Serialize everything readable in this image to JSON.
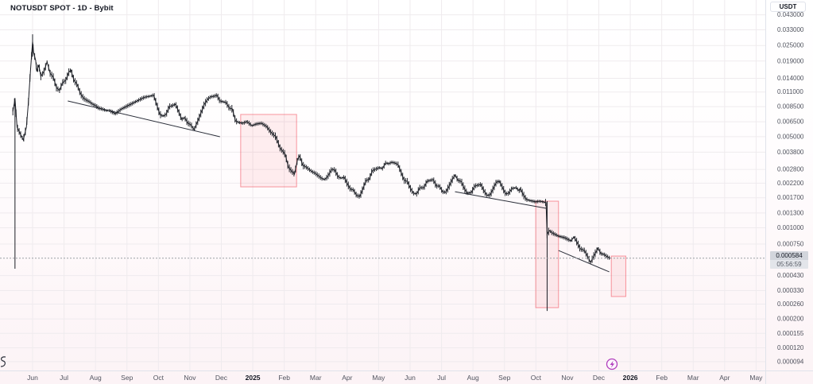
{
  "header": {
    "title": "NOTUSDT SPOT - 1D - Bybit"
  },
  "price_axis": {
    "currency_button": "USDT",
    "ticks": [
      "0.043000",
      "0.033000",
      "0.025000",
      "0.019000",
      "0.014000",
      "0.011000",
      "0.008500",
      "0.006500",
      "0.005000",
      "0.003800",
      "0.002800",
      "0.002200",
      "0.001700",
      "0.001300",
      "0.001000",
      "0.000750",
      "0.000430",
      "0.000330",
      "0.000260",
      "0.000200",
      "0.000155",
      "0.000120",
      "0.000094"
    ],
    "last_price_label": "0.000584",
    "countdown": "05:56:59"
  },
  "time_axis": {
    "labels": [
      {
        "text": "Jun",
        "bold": false
      },
      {
        "text": "Jul",
        "bold": false
      },
      {
        "text": "Aug",
        "bold": false
      },
      {
        "text": "Sep",
        "bold": false
      },
      {
        "text": "Oct",
        "bold": false
      },
      {
        "text": "Nov",
        "bold": false
      },
      {
        "text": "Dec",
        "bold": false
      },
      {
        "text": "2025",
        "bold": true
      },
      {
        "text": "Feb",
        "bold": false
      },
      {
        "text": "Mar",
        "bold": false
      },
      {
        "text": "Apr",
        "bold": false
      },
      {
        "text": "May",
        "bold": false
      },
      {
        "text": "Jun",
        "bold": false
      },
      {
        "text": "Jul",
        "bold": false
      },
      {
        "text": "Aug",
        "bold": false
      },
      {
        "text": "Sep",
        "bold": false
      },
      {
        "text": "Oct",
        "bold": false
      },
      {
        "text": "Nov",
        "bold": false
      },
      {
        "text": "Dec",
        "bold": false
      },
      {
        "text": "2026",
        "bold": true
      },
      {
        "text": "Feb",
        "bold": false
      },
      {
        "text": "Mar",
        "bold": false
      },
      {
        "text": "Apr",
        "bold": false
      },
      {
        "text": "May",
        "bold": false
      }
    ],
    "start_month": "2024-06"
  },
  "colors": {
    "candle": "#1a1d24",
    "trendline": "#2a2e39",
    "box_border": "rgba(242,54,69,0.5)",
    "box_fill": "rgba(242,54,69,0.08)",
    "grid": "#efebee",
    "axis_text": "#50535e",
    "year_text": "#131722",
    "axis_line": "#e0e3eb",
    "price_line": "#9aa0a6",
    "event_icon": "#b13fbd",
    "label_bg": "#d2d5dc",
    "countdown_bg": "#e3e5ea"
  },
  "chart_data": {
    "type": "candlestick",
    "symbol": "NOTUSDT",
    "market": "SPOT",
    "interval": "1D",
    "exchange": "Bybit",
    "quote": "USDT",
    "y_scale": "log",
    "ylim": [
      9.4e-05,
      0.043
    ],
    "x_unit": "days since 2024-05-15",
    "x_range_visible": [
      "2024-05-13",
      "2026-05-31"
    ],
    "last_price": 0.000584,
    "series": [
      {
        "name": "NOTUSDT close",
        "points": [
          [
            -2,
            0.0078
          ],
          [
            0,
            0.0097
          ],
          [
            2,
            0.0059
          ],
          [
            5,
            0.00528
          ],
          [
            8,
            0.00472
          ],
          [
            11,
            0.0059
          ],
          [
            13,
            0.00926
          ],
          [
            15,
            0.0162
          ],
          [
            17,
            0.0269
          ],
          [
            18,
            0.0221
          ],
          [
            20,
            0.0192
          ],
          [
            21,
            0.0158
          ],
          [
            23,
            0.0177
          ],
          [
            25,
            0.0145
          ],
          [
            28,
            0.0158
          ],
          [
            31,
            0.0187
          ],
          [
            34,
            0.0153
          ],
          [
            37,
            0.0143
          ],
          [
            40,
            0.0119
          ],
          [
            43,
            0.0113
          ],
          [
            46,
            0.013
          ],
          [
            49,
            0.0135
          ],
          [
            52,
            0.0156
          ],
          [
            54,
            0.0162
          ],
          [
            57,
            0.0135
          ],
          [
            60,
            0.0126
          ],
          [
            63,
            0.0108
          ],
          [
            66,
            0.0099
          ],
          [
            69,
            0.00952
          ],
          [
            72,
            0.00926
          ],
          [
            75,
            0.00888
          ],
          [
            78,
            0.00863
          ],
          [
            81,
            0.00827
          ],
          [
            84,
            0.00816
          ],
          [
            88,
            0.00793
          ],
          [
            91,
            0.00793
          ],
          [
            94,
            0.00771
          ],
          [
            97,
            0.0075
          ],
          [
            100,
            0.00782
          ],
          [
            103,
            0.00816
          ],
          [
            106,
            0.00839
          ],
          [
            109,
            0.00863
          ],
          [
            112,
            0.00888
          ],
          [
            115,
            0.00913
          ],
          [
            118,
            0.00939
          ],
          [
            121,
            0.00966
          ],
          [
            124,
            0.00993
          ],
          [
            127,
            0.0101
          ],
          [
            130,
            0.0102
          ],
          [
            134,
            0.0104
          ],
          [
            137,
            0.00875
          ],
          [
            140,
            0.0074
          ],
          [
            143,
            0.00719
          ],
          [
            146,
            0.0074
          ],
          [
            149,
            0.00851
          ],
          [
            152,
            0.00863
          ],
          [
            155,
            0.00888
          ],
          [
            158,
            0.00782
          ],
          [
            161,
            0.00679
          ],
          [
            164,
            0.00699
          ],
          [
            167,
            0.00634
          ],
          [
            170,
            0.00616
          ],
          [
            173,
            0.00566
          ],
          [
            177,
            0.0067
          ],
          [
            180,
            0.00771
          ],
          [
            183,
            0.00888
          ],
          [
            186,
            0.00966
          ],
          [
            189,
            0.0101
          ],
          [
            192,
            0.0102
          ],
          [
            195,
            0.0104
          ],
          [
            198,
            0.00939
          ],
          [
            201,
            0.00926
          ],
          [
            204,
            0.00913
          ],
          [
            207,
            0.00827
          ],
          [
            210,
            0.00816
          ],
          [
            213,
            0.00661
          ],
          [
            216,
            0.00643
          ],
          [
            220,
            0.00634
          ],
          [
            224,
            0.00652
          ],
          [
            229,
            0.00607
          ],
          [
            233,
            0.00625
          ],
          [
            238,
            0.00634
          ],
          [
            243,
            0.00599
          ],
          [
            247,
            0.00543
          ],
          [
            252,
            0.00499
          ],
          [
            256,
            0.0041
          ],
          [
            261,
            0.00366
          ],
          [
            264,
            0.00293
          ],
          [
            267,
            0.00273
          ],
          [
            270,
            0.00258
          ],
          [
            273,
            0.00337
          ],
          [
            275,
            0.00356
          ],
          [
            278,
            0.00301
          ],
          [
            281,
            0.00293
          ],
          [
            284,
            0.00281
          ],
          [
            287,
            0.00269
          ],
          [
            290,
            0.00262
          ],
          [
            293,
            0.00251
          ],
          [
            296,
            0.0024
          ],
          [
            299,
            0.00234
          ],
          [
            302,
            0.00247
          ],
          [
            306,
            0.00281
          ],
          [
            309,
            0.00277
          ],
          [
            312,
            0.00247
          ],
          [
            315,
            0.0024
          ],
          [
            318,
            0.00244
          ],
          [
            321,
            0.00218
          ],
          [
            324,
            0.00198
          ],
          [
            327,
            0.00195
          ],
          [
            330,
            0.00177
          ],
          [
            333,
            0.00174
          ],
          [
            336,
            0.00198
          ],
          [
            339,
            0.00231
          ],
          [
            342,
            0.00234
          ],
          [
            345,
            0.00273
          ],
          [
            348,
            0.00281
          ],
          [
            352,
            0.00289
          ],
          [
            355,
            0.00285
          ],
          [
            358,
            0.00314
          ],
          [
            361,
            0.0031
          ],
          [
            364,
            0.00318
          ],
          [
            367,
            0.00314
          ],
          [
            370,
            0.00305
          ],
          [
            373,
            0.00265
          ],
          [
            376,
            0.00231
          ],
          [
            379,
            0.00227
          ],
          [
            382,
            0.002
          ],
          [
            385,
            0.00184
          ],
          [
            388,
            0.00182
          ],
          [
            391,
            0.00203
          ],
          [
            395,
            0.00203
          ],
          [
            398,
            0.00227
          ],
          [
            401,
            0.00231
          ],
          [
            404,
            0.00234
          ],
          [
            407,
            0.00209
          ],
          [
            410,
            0.00209
          ],
          [
            413,
            0.00189
          ],
          [
            416,
            0.00187
          ],
          [
            419,
            0.00206
          ],
          [
            422,
            0.00231
          ],
          [
            425,
            0.00254
          ],
          [
            428,
            0.00231
          ],
          [
            431,
            0.00227
          ],
          [
            434,
            0.002
          ],
          [
            437,
            0.00184
          ],
          [
            441,
            0.00187
          ],
          [
            444,
            0.00209
          ],
          [
            447,
            0.00212
          ],
          [
            450,
            0.00215
          ],
          [
            453,
            0.00192
          ],
          [
            456,
            0.00177
          ],
          [
            459,
            0.00179
          ],
          [
            462,
            0.002
          ],
          [
            465,
            0.00224
          ],
          [
            468,
            0.00227
          ],
          [
            471,
            0.00203
          ],
          [
            474,
            0.00182
          ],
          [
            477,
            0.00184
          ],
          [
            480,
            0.002
          ],
          [
            484,
            0.00203
          ],
          [
            487,
            0.00192
          ],
          [
            488,
            0.002
          ],
          [
            491,
            0.00179
          ],
          [
            494,
            0.00165
          ],
          [
            497,
            0.00162
          ],
          [
            500,
            0.0016
          ],
          [
            503,
            0.00158
          ],
          [
            507,
            0.0016
          ],
          [
            510,
            0.00158
          ],
          [
            513,
            0.00156
          ],
          [
            514,
            0.000888
          ],
          [
            516,
            0.000952
          ],
          [
            519,
            0.000913
          ],
          [
            522,
            0.000888
          ],
          [
            525,
            0.000863
          ],
          [
            528,
            0.000851
          ],
          [
            531,
            0.000839
          ],
          [
            534,
            0.000816
          ],
          [
            537,
            0.000793
          ],
          [
            540,
            0.000851
          ],
          [
            543,
            0.000771
          ],
          [
            546,
            0.000689
          ],
          [
            550,
            0.00067
          ],
          [
            553,
            0.000607
          ],
          [
            556,
            0.000543
          ],
          [
            559,
            0.000607
          ],
          [
            562,
            0.00067
          ],
          [
            563,
            0.000699
          ],
          [
            566,
            0.000634
          ],
          [
            569,
            0.000625
          ],
          [
            572,
            0.000599
          ],
          [
            575,
            0.000584
          ]
        ]
      }
    ],
    "long_wicks": [
      {
        "d": 0,
        "high": 0.0099,
        "low": 0.000485,
        "note": "listing-day lower wick"
      },
      {
        "d": 17,
        "high": 0.0305,
        "low": 0.0205,
        "note": "all-time-high wick"
      },
      {
        "d": 514,
        "high": 0.0016,
        "low": 0.00023,
        "note": "oct-2025 crash wick"
      }
    ],
    "trendlines": [
      {
        "from": [
          51,
          0.00939
        ],
        "to": [
          198,
          0.00499
        ]
      },
      {
        "from": [
          425,
          0.00189
        ],
        "to": [
          513,
          0.00141
        ]
      },
      {
        "from": [
          525,
          0.00067
        ],
        "to": [
          574,
          0.000459
        ]
      }
    ],
    "boxes": [
      {
        "from_d": 218,
        "to_d": 272,
        "top": 0.0074,
        "bottom": 0.00206
      },
      {
        "from_d": 503,
        "to_d": 525,
        "top": 0.0016,
        "bottom": 0.000244
      },
      {
        "from_d": 576,
        "to_d": 590,
        "top": 0.000607,
        "bottom": 0.000297
      }
    ]
  }
}
